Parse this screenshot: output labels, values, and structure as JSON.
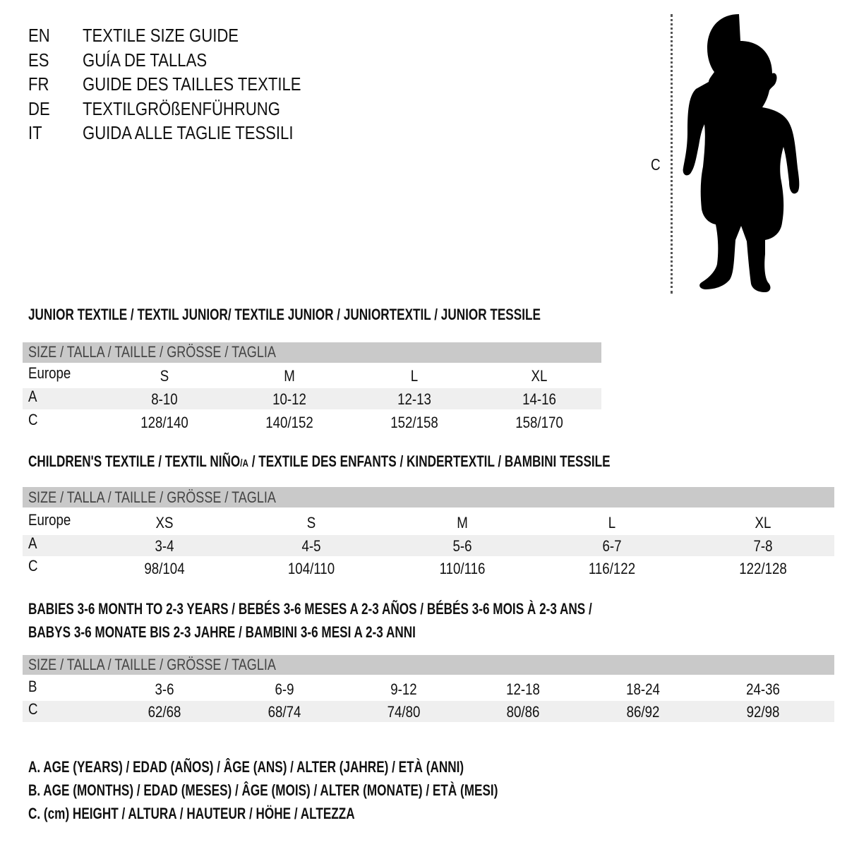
{
  "titles": [
    {
      "lang": "EN",
      "text": "TEXTILE SIZE GUIDE"
    },
    {
      "lang": "ES",
      "text": "GUÍA DE TALLAS"
    },
    {
      "lang": "FR",
      "text": "GUIDE DES TAILLES TEXTILE"
    },
    {
      "lang": "DE",
      "text": "TEXTILGRÖßENFÜHRUNG"
    },
    {
      "lang": "IT",
      "text": "GUIDA ALLE TAGLIE TESSILI"
    }
  ],
  "figure": {
    "measure_label": "C",
    "icon": "child-silhouette-icon"
  },
  "header_label": "SIZE / TALLA / TAILLE / GRÖSSE / TAGLIA",
  "junior": {
    "title": "JUNIOR TEXTILE / TEXTIL JUNIOR/ TEXTILE JUNIOR / JUNIORTEXTIL / JUNIOR TESSILE",
    "rows": [
      {
        "label": "Europe",
        "values": [
          "S",
          "M",
          "L",
          "XL"
        ]
      },
      {
        "label": "A",
        "values": [
          "8-10",
          "10-12",
          "12-13",
          "14-16"
        ]
      },
      {
        "label": "C",
        "values": [
          "128/140",
          "140/152",
          "152/158",
          "158/170"
        ]
      }
    ]
  },
  "children": {
    "title_a": "CHILDREN'S TEXTILE / TEXTIL NIÑO",
    "title_sub": "/A",
    "title_b": " / TEXTILE DES ENFANTS / KINDERTEXTIL / BAMBINI TESSILE",
    "rows": [
      {
        "label": "Europe",
        "values": [
          "XS",
          "S",
          "M",
          "L",
          "XL"
        ]
      },
      {
        "label": "A",
        "values": [
          "3-4",
          "4-5",
          "5-6",
          "6-7",
          "7-8"
        ]
      },
      {
        "label": "C",
        "values": [
          "98/104",
          "104/110",
          "110/116",
          "116/122",
          "122/128"
        ]
      }
    ]
  },
  "babies": {
    "title_1": "BABIES 3-6 MONTH TO 2-3 YEARS / BEBÉS 3-6 MESES A 2-3 AÑOS / BÉBÉS 3-6 MOIS À 2-3 ANS /",
    "title_2": "BABYS 3-6 MONATE BIS 2-3 JAHRE / BAMBINI 3-6 MESI A 2-3 ANNI",
    "rows": [
      {
        "label": "B",
        "values": [
          "3-6",
          "6-9",
          "9-12",
          "12-18",
          "18-24",
          "24-36"
        ]
      },
      {
        "label": "C",
        "values": [
          "62/68",
          "68/74",
          "74/80",
          "80/86",
          "86/92",
          "92/98"
        ]
      }
    ]
  },
  "legend": [
    "A. AGE (YEARS) / EDAD (AÑOS) / ÂGE (ANS) / ALTER (JAHRE) / ETÀ (ANNI)",
    "B. AGE (MONTHS) / EDAD (MESES) / ÂGE (MOIS) / ALTER (MONATE) / ETÀ (MESI)",
    "C. (cm) HEIGHT / ALTURA / HAUTEUR / HÖHE / ALTEZZA"
  ]
}
